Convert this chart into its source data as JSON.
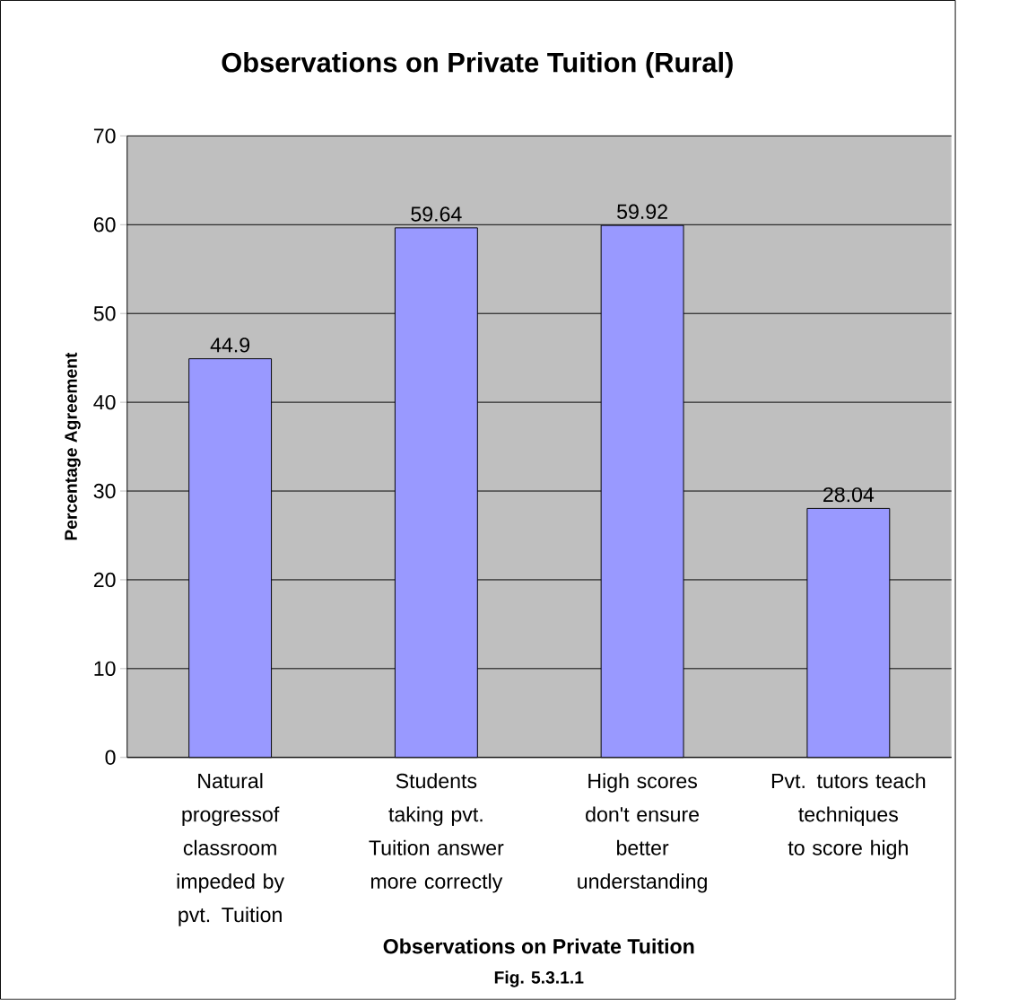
{
  "chart_data": {
    "type": "bar",
    "title": "Observations on Private Tuition (Rural)",
    "xlabel": "Observations on Private Tuition",
    "ylabel": "Percentage Agreement",
    "annotations": [
      "Fig. 5.3.1.1"
    ],
    "categories": [
      "Natural progressof classroom impeded by pvt. Tuition",
      "Students taking pvt. Tuition answer more correctly",
      "High scores don't ensure better understanding",
      "Pvt. tutors teach techniques to score high"
    ],
    "values": [
      44.9,
      59.64,
      59.92,
      28.04
    ],
    "color": "#9999ff",
    "ylim": [
      0,
      70
    ],
    "yticks": [
      0,
      10,
      20,
      30,
      40,
      50,
      60,
      70
    ],
    "grid": "y",
    "data_labels": true
  }
}
